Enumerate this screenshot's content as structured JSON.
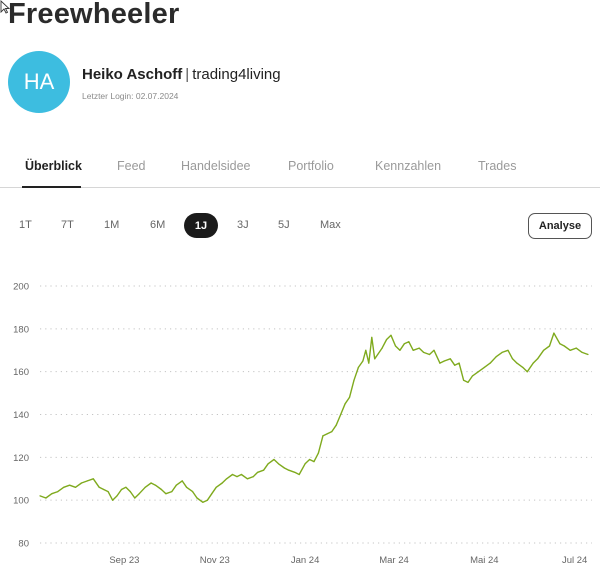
{
  "page": {
    "title": "Freewheeler"
  },
  "profile": {
    "avatar_initials": "HA",
    "avatar_color": "#3dbde0",
    "name": "Heiko Aschoff",
    "separator": "|",
    "handle": "trading4living",
    "last_login": "Letzter Login: 02.07.2024"
  },
  "tabs": [
    {
      "label": "Überblick",
      "active": true
    },
    {
      "label": "Feed",
      "active": false
    },
    {
      "label": "Handelsidee",
      "active": false
    },
    {
      "label": "Portfolio",
      "active": false
    },
    {
      "label": "Kennzahlen",
      "active": false
    },
    {
      "label": "Trades",
      "active": false
    }
  ],
  "ranges": [
    {
      "label": "1T",
      "active": false
    },
    {
      "label": "7T",
      "active": false
    },
    {
      "label": "1M",
      "active": false
    },
    {
      "label": "6M",
      "active": false
    },
    {
      "label": "1J",
      "active": true
    },
    {
      "label": "3J",
      "active": false
    },
    {
      "label": "5J",
      "active": false
    },
    {
      "label": "Max",
      "active": false
    }
  ],
  "analyse_label": "Analyse",
  "chart_data": {
    "type": "line",
    "title": "",
    "xlabel": "",
    "ylabel": "",
    "ylim": [
      80,
      200
    ],
    "y_ticks": [
      200,
      180,
      160,
      140,
      120,
      100,
      80
    ],
    "x_tick_labels": [
      "Sep 23",
      "Nov 23",
      "Jan 24",
      "Mar 24",
      "Mai 24",
      "Jul 24"
    ],
    "x_tick_dates": [
      "2023-09-15",
      "2023-11-15",
      "2024-01-15",
      "2024-03-15",
      "2024-05-15",
      "2024-07-15"
    ],
    "x_range": [
      "2023-07-20",
      "2024-07-24"
    ],
    "grid": "horizontal-dotted",
    "line_color": "#7faa1e",
    "series": [
      {
        "x": [
          "2023-07-20",
          "2023-07-24",
          "2023-07-28",
          "2023-08-01",
          "2023-08-05",
          "2023-08-09",
          "2023-08-13",
          "2023-08-17",
          "2023-08-21",
          "2023-08-25",
          "2023-08-29",
          "2023-09-01",
          "2023-09-04",
          "2023-09-07",
          "2023-09-10",
          "2023-09-13",
          "2023-09-16",
          "2023-09-19",
          "2023-09-22",
          "2023-09-25",
          "2023-09-29",
          "2023-10-03",
          "2023-10-06",
          "2023-10-10",
          "2023-10-13",
          "2023-10-17",
          "2023-10-20",
          "2023-10-24",
          "2023-10-27",
          "2023-10-31",
          "2023-11-03",
          "2023-11-07",
          "2023-11-10",
          "2023-11-13",
          "2023-11-16",
          "2023-11-20",
          "2023-11-23",
          "2023-11-27",
          "2023-11-30",
          "2023-12-03",
          "2023-12-07",
          "2023-12-11",
          "2023-12-14",
          "2023-12-18",
          "2023-12-21",
          "2023-12-25",
          "2023-12-28",
          "2024-01-01",
          "2024-01-04",
          "2024-01-08",
          "2024-01-11",
          "2024-01-15",
          "2024-01-18",
          "2024-01-21",
          "2024-01-24",
          "2024-01-27",
          "2024-01-30",
          "2024-02-02",
          "2024-02-05",
          "2024-02-08",
          "2024-02-11",
          "2024-02-14",
          "2024-02-17",
          "2024-02-20",
          "2024-02-23",
          "2024-02-25",
          "2024-02-27",
          "2024-02-29",
          "2024-03-02",
          "2024-03-04",
          "2024-03-07",
          "2024-03-10",
          "2024-03-13",
          "2024-03-16",
          "2024-03-19",
          "2024-03-22",
          "2024-03-25",
          "2024-03-28",
          "2024-04-01",
          "2024-04-04",
          "2024-04-08",
          "2024-04-11",
          "2024-04-15",
          "2024-04-18",
          "2024-04-22",
          "2024-04-25",
          "2024-04-28",
          "2024-05-01",
          "2024-05-04",
          "2024-05-07",
          "2024-05-11",
          "2024-05-15",
          "2024-05-19",
          "2024-05-23",
          "2024-05-27",
          "2024-05-31",
          "2024-06-03",
          "2024-06-06",
          "2024-06-10",
          "2024-06-13",
          "2024-06-17",
          "2024-06-20",
          "2024-06-24",
          "2024-06-28",
          "2024-07-01",
          "2024-07-05",
          "2024-07-08",
          "2024-07-12",
          "2024-07-16",
          "2024-07-20",
          "2024-07-24"
        ],
        "y": [
          102,
          101,
          103,
          104,
          106,
          107,
          106,
          108,
          109,
          110,
          106,
          105,
          104,
          100,
          102,
          105,
          106,
          104,
          101,
          103,
          106,
          108,
          107,
          105,
          103,
          104,
          107,
          109,
          106,
          104,
          101,
          99,
          100,
          103,
          106,
          108,
          110,
          112,
          111,
          112,
          110,
          111,
          113,
          114,
          117,
          119,
          117,
          115,
          114,
          113,
          112,
          117,
          119,
          118,
          122,
          130,
          131,
          132,
          135,
          140,
          145,
          148,
          156,
          162,
          165,
          170,
          164,
          176,
          166,
          168,
          171,
          175,
          177,
          172,
          170,
          173,
          174,
          170,
          171,
          169,
          168,
          170,
          164,
          165,
          166,
          163,
          164,
          156,
          155,
          158,
          160,
          162,
          164,
          167,
          169,
          170,
          166,
          164,
          162,
          160,
          164,
          166,
          170,
          172,
          178,
          173,
          172,
          170,
          171,
          169,
          168
        ]
      }
    ]
  }
}
